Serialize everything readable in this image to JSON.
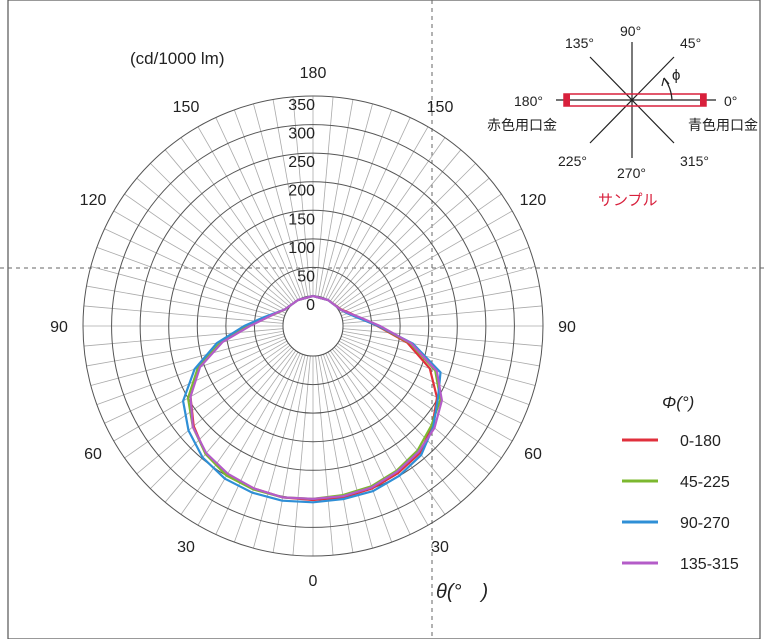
{
  "chart_data": {
    "type": "polar-line",
    "unit_label": "(cd/1000 lm)",
    "theta_label": "θ(°　)",
    "radial_ticks": [
      "0",
      "50",
      "100",
      "150",
      "200",
      "250",
      "300",
      "350"
    ],
    "radial_max": 350,
    "radial_step": 50,
    "angle_labels": [
      {
        "text": "180",
        "deg": 180
      },
      {
        "text": "150",
        "deg": 150
      },
      {
        "text": "150",
        "deg": -150
      },
      {
        "text": "120",
        "deg": 120
      },
      {
        "text": "120",
        "deg": -120
      },
      {
        "text": "90",
        "deg": 90
      },
      {
        "text": "90",
        "deg": -90
      },
      {
        "text": "60",
        "deg": 60
      },
      {
        "text": "60",
        "deg": -60
      },
      {
        "text": "30",
        "deg": 30
      },
      {
        "text": "30",
        "deg": -30
      },
      {
        "text": "0",
        "deg": 0
      }
    ],
    "angle_spoke_step": 5,
    "legend_title": "Φ(°)",
    "series": [
      {
        "name": "0-180",
        "color": "#e0303c",
        "points": [
          [
            -180,
            0
          ],
          [
            -150,
            0
          ],
          [
            -120,
            5
          ],
          [
            -110,
            15
          ],
          [
            -100,
            30
          ],
          [
            -90,
            60
          ],
          [
            -80,
            110
          ],
          [
            -70,
            160
          ],
          [
            -60,
            195
          ],
          [
            -50,
            220
          ],
          [
            -40,
            240
          ],
          [
            -30,
            248
          ],
          [
            -20,
            250
          ],
          [
            -10,
            252
          ],
          [
            0,
            252
          ],
          [
            10,
            252
          ],
          [
            20,
            250
          ],
          [
            30,
            245
          ],
          [
            40,
            238
          ],
          [
            50,
            220
          ],
          [
            60,
            198
          ],
          [
            70,
            165
          ],
          [
            80,
            115
          ],
          [
            90,
            60
          ],
          [
            100,
            30
          ],
          [
            110,
            15
          ],
          [
            120,
            5
          ],
          [
            150,
            0
          ],
          [
            180,
            0
          ]
        ]
      },
      {
        "name": "45-225",
        "color": "#7cb82f",
        "points": [
          [
            -180,
            0
          ],
          [
            -150,
            0
          ],
          [
            -120,
            5
          ],
          [
            -110,
            14
          ],
          [
            -100,
            32
          ],
          [
            -90,
            62
          ],
          [
            -80,
            112
          ],
          [
            -70,
            162
          ],
          [
            -60,
            200
          ],
          [
            -50,
            222
          ],
          [
            -40,
            240
          ],
          [
            -30,
            250
          ],
          [
            -20,
            252
          ],
          [
            -10,
            252
          ],
          [
            0,
            250
          ],
          [
            10,
            248
          ],
          [
            20,
            246
          ],
          [
            30,
            240
          ],
          [
            40,
            232
          ],
          [
            50,
            218
          ],
          [
            60,
            205
          ],
          [
            70,
            175
          ],
          [
            80,
            120
          ],
          [
            90,
            62
          ],
          [
            100,
            30
          ],
          [
            110,
            12
          ],
          [
            120,
            4
          ],
          [
            150,
            0
          ],
          [
            180,
            0
          ]
        ]
      },
      {
        "name": "90-270",
        "color": "#2f8fd6",
        "points": [
          [
            -180,
            0
          ],
          [
            -150,
            0
          ],
          [
            -120,
            5
          ],
          [
            -110,
            16
          ],
          [
            -100,
            35
          ],
          [
            -90,
            68
          ],
          [
            -80,
            118
          ],
          [
            -70,
            168
          ],
          [
            -60,
            210
          ],
          [
            -50,
            232
          ],
          [
            -40,
            248
          ],
          [
            -30,
            256
          ],
          [
            -20,
            258
          ],
          [
            -10,
            258
          ],
          [
            0,
            256
          ],
          [
            10,
            255
          ],
          [
            20,
            255
          ],
          [
            30,
            250
          ],
          [
            40,
            242
          ],
          [
            50,
            222
          ],
          [
            60,
            200
          ],
          [
            70,
            185
          ],
          [
            80,
            125
          ],
          [
            90,
            62
          ],
          [
            100,
            28
          ],
          [
            110,
            12
          ],
          [
            120,
            4
          ],
          [
            150,
            0
          ],
          [
            180,
            0
          ]
        ]
      },
      {
        "name": "135-315",
        "color": "#b45cc8",
        "points": [
          [
            -180,
            0
          ],
          [
            -150,
            0
          ],
          [
            -120,
            5
          ],
          [
            -110,
            15
          ],
          [
            -100,
            30
          ],
          [
            -90,
            58
          ],
          [
            -80,
            108
          ],
          [
            -70,
            158
          ],
          [
            -60,
            195
          ],
          [
            -50,
            222
          ],
          [
            -40,
            238
          ],
          [
            -30,
            246
          ],
          [
            -20,
            250
          ],
          [
            -10,
            252
          ],
          [
            0,
            250
          ],
          [
            10,
            250
          ],
          [
            20,
            248
          ],
          [
            30,
            242
          ],
          [
            40,
            235
          ],
          [
            50,
            225
          ],
          [
            60,
            208
          ],
          [
            70,
            178
          ],
          [
            80,
            122
          ],
          [
            90,
            65
          ],
          [
            100,
            32
          ],
          [
            110,
            14
          ],
          [
            120,
            4
          ],
          [
            150,
            0
          ],
          [
            180,
            0
          ]
        ]
      }
    ]
  },
  "inset": {
    "labels": {
      "a90": "90°",
      "a45": "45°",
      "a135": "135°",
      "a0": "0°",
      "a180": "180°",
      "a225": "225°",
      "a270": "270°",
      "a315": "315°",
      "phi": "ϕ"
    },
    "left_cap_label": "赤色用口金",
    "right_cap_label": "青色用口金",
    "sample_label": "サンプル",
    "lamp_color": "#d8203c"
  }
}
